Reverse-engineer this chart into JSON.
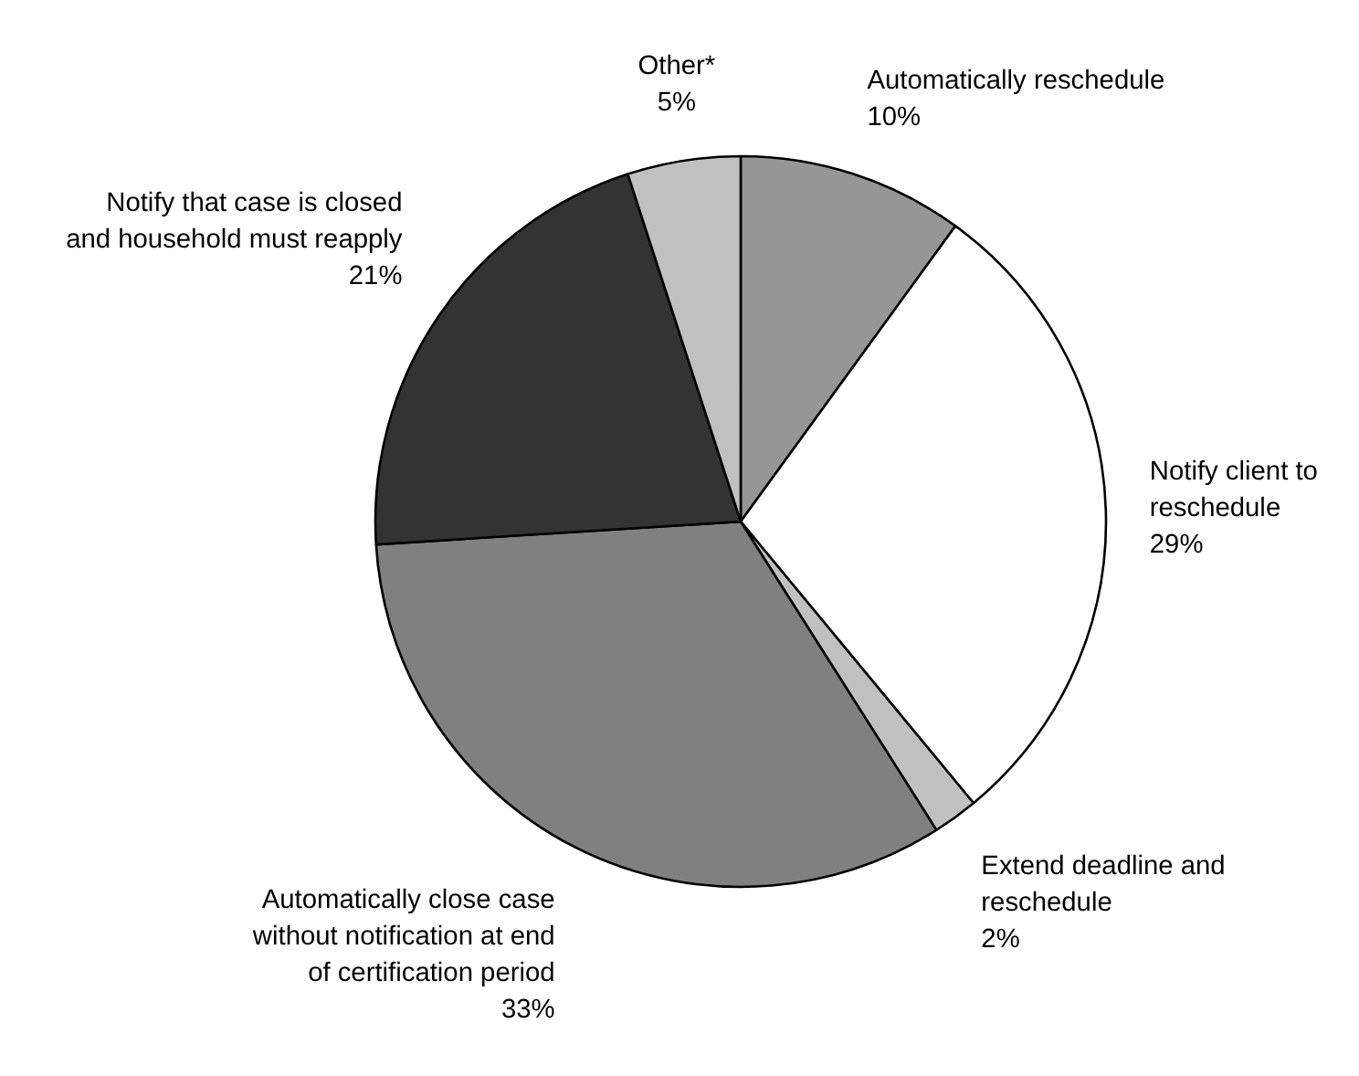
{
  "chart_data": {
    "type": "pie",
    "categories": [
      "Automatically reschedule",
      "Notify client to reschedule",
      "Extend deadline and reschedule",
      "Automatically close case without notification at end of certification period",
      "Notify that case is closed and household must reapply",
      "Other*"
    ],
    "values": [
      10,
      29,
      2,
      33,
      21,
      5
    ],
    "colors": [
      "#969696",
      "#ffffff",
      "#c0c0c0",
      "#808080",
      "#333333",
      "#c0c0c0"
    ],
    "value_labels": [
      "10%",
      "29%",
      "2%",
      "33%",
      "21%",
      "5%"
    ]
  }
}
